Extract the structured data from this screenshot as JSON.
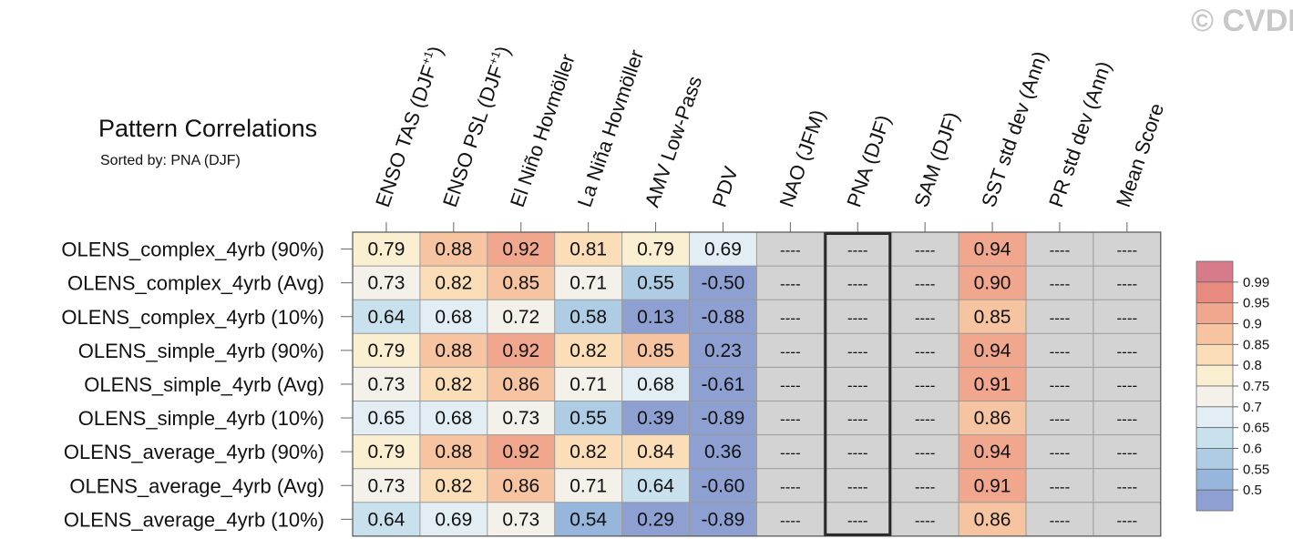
{
  "title": "Pattern Correlations",
  "subtitle": "Sorted by: PNA (DJF)",
  "watermark": "© CVDP",
  "missing_label": "----",
  "highlight_column": "PNA (DJF)",
  "colors": {
    "missing_cell": "#d3d3d3",
    "highlight_border": "#2b2b2b",
    "grid_line": "#9a9a9a"
  },
  "chart_data": {
    "type": "heatmap",
    "title": "Pattern Correlations",
    "subtitle": "Sorted by: PNA (DJF)",
    "columns": [
      "ENSO TAS (DJF+1)",
      "ENSO PSL (DJF+1)",
      "El Niño Hovmöller",
      "La Niña Hovmöller",
      "AMV Low-Pass",
      "PDV",
      "NAO (JFM)",
      "PNA (DJF)",
      "SAM (DJF)",
      "SST std dev (Ann)",
      "PR std dev (Ann)",
      "Mean Score"
    ],
    "column_labels": [
      {
        "text": "ENSO TAS (DJF",
        "sup": "+1",
        "tail": ")"
      },
      {
        "text": "ENSO PSL (DJF",
        "sup": "+1",
        "tail": ")"
      },
      {
        "text": "El Niño Hovmöller",
        "sup": "",
        "tail": ""
      },
      {
        "text": "La Niña Hovmöller",
        "sup": "",
        "tail": ""
      },
      {
        "text": "AMV Low-Pass",
        "sup": "",
        "tail": ""
      },
      {
        "text": "PDV",
        "sup": "",
        "tail": ""
      },
      {
        "text": "NAO (JFM)",
        "sup": "",
        "tail": ""
      },
      {
        "text": "PNA (DJF)",
        "sup": "",
        "tail": ""
      },
      {
        "text": "SAM (DJF)",
        "sup": "",
        "tail": ""
      },
      {
        "text": "SST std dev (Ann)",
        "sup": "",
        "tail": ""
      },
      {
        "text": "PR std dev (Ann)",
        "sup": "",
        "tail": ""
      },
      {
        "text": "Mean Score",
        "sup": "",
        "tail": ""
      }
    ],
    "rows": [
      "OLENS_complex_4yrb (90%)",
      "OLENS_complex_4yrb (Avg)",
      "OLENS_complex_4yrb (10%)",
      "OLENS_simple_4yrb (90%)",
      "OLENS_simple_4yrb (Avg)",
      "OLENS_simple_4yrb (10%)",
      "OLENS_average_4yrb (90%)",
      "OLENS_average_4yrb (Avg)",
      "OLENS_average_4yrb (10%)"
    ],
    "values": [
      [
        "0.79",
        "0.88",
        "0.92",
        "0.81",
        "0.79",
        "0.69",
        null,
        null,
        null,
        "0.94",
        null,
        null
      ],
      [
        "0.73",
        "0.82",
        "0.85",
        "0.71",
        "0.55",
        "-0.50",
        null,
        null,
        null,
        "0.90",
        null,
        null
      ],
      [
        "0.64",
        "0.68",
        "0.72",
        "0.58",
        "0.13",
        "-0.88",
        null,
        null,
        null,
        "0.85",
        null,
        null
      ],
      [
        "0.79",
        "0.88",
        "0.92",
        "0.82",
        "0.85",
        "0.23",
        null,
        null,
        null,
        "0.94",
        null,
        null
      ],
      [
        "0.73",
        "0.82",
        "0.86",
        "0.71",
        "0.68",
        "-0.61",
        null,
        null,
        null,
        "0.91",
        null,
        null
      ],
      [
        "0.65",
        "0.68",
        "0.73",
        "0.55",
        "0.39",
        "-0.89",
        null,
        null,
        null,
        "0.86",
        null,
        null
      ],
      [
        "0.79",
        "0.88",
        "0.92",
        "0.82",
        "0.84",
        "0.36",
        null,
        null,
        null,
        "0.94",
        null,
        null
      ],
      [
        "0.73",
        "0.82",
        "0.86",
        "0.71",
        "0.64",
        "-0.60",
        null,
        null,
        null,
        "0.91",
        null,
        null
      ],
      [
        "0.64",
        "0.69",
        "0.73",
        "0.54",
        "0.29",
        "-0.89",
        null,
        null,
        null,
        "0.86",
        null,
        null
      ]
    ],
    "colorbar": {
      "tick_labels": [
        "0.99",
        "0.95",
        "0.9",
        "0.85",
        "0.8",
        "0.75",
        "0.7",
        "0.65",
        "0.6",
        "0.55",
        "0.5"
      ],
      "colors_top_to_bottom": [
        "#d77a8a",
        "#e88a80",
        "#f1a68e",
        "#f6c4a0",
        "#fbddb8",
        "#fbefd2",
        "#f3f1ea",
        "#e2eef3",
        "#c9e1ed",
        "#aecde5",
        "#97b6dc",
        "#8ea0d2"
      ]
    }
  }
}
